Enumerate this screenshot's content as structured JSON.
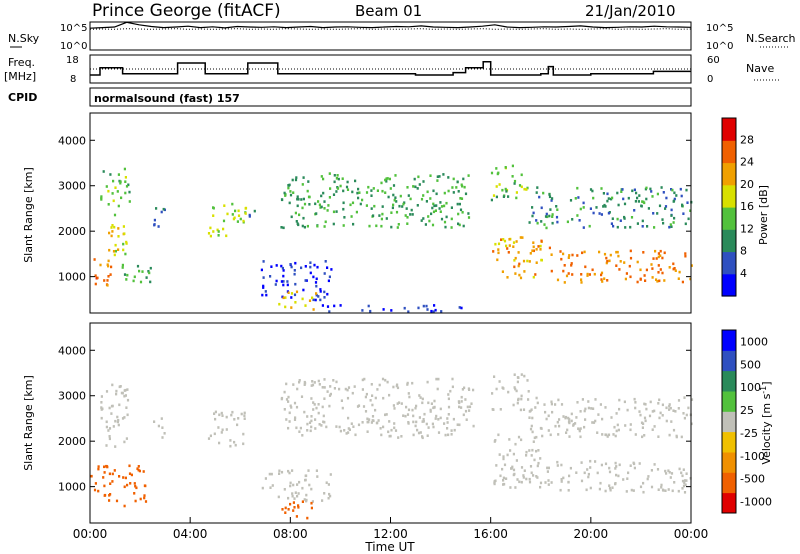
{
  "header": {
    "station": "Prince George (fitACF)",
    "beam": "Beam 01",
    "date": "21/Jan/2010"
  },
  "chart_data": [
    {
      "type": "line",
      "name": "noise-panel",
      "left_label": "N.Sky",
      "right_label": "N.Search",
      "left_ticks": [
        "10^5",
        "10^0"
      ],
      "right_ticks": [
        "10^5",
        "10^0"
      ],
      "series": [
        {
          "name": "N.Sky",
          "style": "solid",
          "values": [
            0.78,
            0.8,
            0.82,
            0.99,
            0.9,
            0.84,
            0.8,
            0.82,
            0.85,
            0.8,
            0.83,
            0.79,
            0.84,
            0.82,
            0.81,
            0.83,
            0.8,
            0.82,
            0.84,
            0.8,
            0.82,
            0.83,
            0.81,
            0.8,
            0.82,
            0.84,
            0.83,
            0.86,
            0.82,
            0.81,
            0.8,
            0.82,
            0.85,
            0.9,
            0.82,
            0.8,
            0.81,
            0.83,
            0.82,
            0.84,
            0.86,
            0.82,
            0.8,
            0.81,
            0.83,
            0.82,
            0.85,
            0.83,
            0.82,
            0.81
          ]
        },
        {
          "name": "N.Search",
          "style": "dotted",
          "values": [
            0.74,
            0.75,
            0.74,
            0.76,
            0.75,
            0.74,
            0.75,
            0.76,
            0.74,
            0.75,
            0.74,
            0.75,
            0.76,
            0.74,
            0.75,
            0.74,
            0.76,
            0.75,
            0.74,
            0.75,
            0.74,
            0.75,
            0.76,
            0.74,
            0.75,
            0.74,
            0.75,
            0.76,
            0.74,
            0.75,
            0.74,
            0.75,
            0.76,
            0.74,
            0.75,
            0.74,
            0.75,
            0.76,
            0.74,
            0.75,
            0.74,
            0.75,
            0.76,
            0.74,
            0.75,
            0.74,
            0.75,
            0.76,
            0.74,
            0.75
          ]
        }
      ]
    },
    {
      "type": "line",
      "name": "freq-panel",
      "left_label_1": "Freq.",
      "left_label_2": "[MHz]",
      "right_label": "Nave",
      "left_ticks": [
        "18",
        "8"
      ],
      "right_ticks": [
        "60",
        "0"
      ],
      "left_ylim": [
        8,
        18
      ],
      "right_ylim": [
        0,
        60
      ],
      "freq_steps": [
        [
          0,
          10.5
        ],
        [
          0.4,
          13.5
        ],
        [
          1.3,
          11
        ],
        [
          3.5,
          15.5
        ],
        [
          4.6,
          11
        ],
        [
          6.3,
          15.5
        ],
        [
          7.5,
          11
        ],
        [
          13,
          10.5
        ],
        [
          14.5,
          11.5
        ],
        [
          15,
          13.5
        ],
        [
          15.7,
          16
        ],
        [
          16,
          10.5
        ],
        [
          18,
          11
        ],
        [
          18.3,
          14
        ],
        [
          18.5,
          10.5
        ],
        [
          20,
          11
        ],
        [
          22.5,
          12
        ],
        [
          24,
          12
        ]
      ],
      "nave_level": 30
    },
    {
      "type": "heatmap",
      "name": "cpid",
      "label": "CPID",
      "program": "normalsound (fast) 157"
    },
    {
      "type": "heatmap",
      "name": "power",
      "ylabel": "Slant Range [km]",
      "yticks": [
        "1000",
        "2000",
        "3000",
        "4000"
      ],
      "ylim": [
        200,
        4600
      ],
      "xlim": [
        0,
        24
      ],
      "colorbar_label": "Power [dB]",
      "colorbar_ticks": [
        "28",
        "24",
        "20",
        "16",
        "12",
        "8",
        "4"
      ],
      "colors": [
        "#0000ff",
        "#2f50c0",
        "#2a8a5a",
        "#52c13c",
        "#d8e000",
        "#f0a000",
        "#f06000",
        "#e00000"
      ],
      "regions": [
        {
          "t0": 0.0,
          "t1": 0.8,
          "r0": 700,
          "r1": 1500,
          "v": 27
        },
        {
          "t0": 0.4,
          "t1": 1.6,
          "r0": 2500,
          "r1": 3400,
          "v": 16
        },
        {
          "t0": 0.6,
          "t1": 1.6,
          "r0": 1500,
          "r1": 2400,
          "v": 20
        },
        {
          "t0": 0.8,
          "t1": 2.4,
          "r0": 900,
          "r1": 1300,
          "v": 14
        },
        {
          "t0": 2.4,
          "t1": 3.0,
          "r0": 2100,
          "r1": 2600,
          "v": 10
        },
        {
          "t0": 4.7,
          "t1": 6.2,
          "r0": 1900,
          "r1": 2700,
          "v": 18
        },
        {
          "t0": 6.3,
          "t1": 6.7,
          "r0": 2300,
          "r1": 2600,
          "v": 10
        },
        {
          "t0": 6.8,
          "t1": 9.6,
          "r0": 500,
          "r1": 1400,
          "v": 6
        },
        {
          "t0": 7.5,
          "t1": 9.0,
          "r0": 300,
          "r1": 700,
          "v": 22
        },
        {
          "t0": 7.6,
          "t1": 15.3,
          "r0": 2100,
          "r1": 3300,
          "v": 14
        },
        {
          "t0": 16.0,
          "t1": 18.4,
          "r0": 1000,
          "r1": 1900,
          "v": 24
        },
        {
          "t0": 16.0,
          "t1": 17.5,
          "r0": 2700,
          "r1": 3500,
          "v": 16
        },
        {
          "t0": 17.5,
          "t1": 24.0,
          "r0": 2100,
          "r1": 3000,
          "v": 12
        },
        {
          "t0": 18.6,
          "t1": 24.0,
          "r0": 900,
          "r1": 1600,
          "v": 26
        },
        {
          "t0": 9.0,
          "t1": 15.0,
          "r0": 250,
          "r1": 400,
          "v": 6
        }
      ]
    },
    {
      "type": "heatmap",
      "name": "velocity",
      "ylabel": "Slant Range [km]",
      "yticks": [
        "1000",
        "2000",
        "3000",
        "4000"
      ],
      "ylim": [
        200,
        4600
      ],
      "xlim": [
        0,
        24
      ],
      "xticks": [
        "00:00",
        "04:00",
        "08:00",
        "12:00",
        "16:00",
        "20:00",
        "00:00"
      ],
      "xlabel": "Time UT",
      "colorbar_label": "Velocity [m s^-1]",
      "colorbar_ticks": [
        "1000",
        "500",
        "100",
        "25",
        "-25",
        "-100",
        "-500",
        "-1000"
      ],
      "colors": [
        "#e00000",
        "#f06000",
        "#f09000",
        "#f0c000",
        "#c0c0b8",
        "#52c13c",
        "#2a8a5a",
        "#2f50c0",
        "#0000ff"
      ],
      "regions": [
        {
          "t0": 0.0,
          "t1": 2.2,
          "r0": 600,
          "r1": 1500,
          "v": -400
        },
        {
          "t0": 0.3,
          "t1": 1.5,
          "r0": 1800,
          "r1": 3300,
          "v": 0
        },
        {
          "t0": 2.5,
          "t1": 3.0,
          "r0": 2100,
          "r1": 2600,
          "v": 0
        },
        {
          "t0": 4.7,
          "t1": 6.2,
          "r0": 1900,
          "r1": 2700,
          "v": 0
        },
        {
          "t0": 6.8,
          "t1": 9.6,
          "r0": 700,
          "r1": 1400,
          "v": 0
        },
        {
          "t0": 7.5,
          "t1": 9.0,
          "r0": 300,
          "r1": 700,
          "v": -500
        },
        {
          "t0": 7.6,
          "t1": 15.3,
          "r0": 2100,
          "r1": 3400,
          "v": 0
        },
        {
          "t0": 16.0,
          "t1": 18.4,
          "r0": 1000,
          "r1": 2200,
          "v": 0
        },
        {
          "t0": 16.0,
          "t1": 17.5,
          "r0": 2700,
          "r1": 3500,
          "v": 0
        },
        {
          "t0": 17.5,
          "t1": 24.0,
          "r0": 2100,
          "r1": 3000,
          "v": 0
        },
        {
          "t0": 18.6,
          "t1": 24.0,
          "r0": 900,
          "r1": 1600,
          "v": 0
        }
      ]
    }
  ]
}
